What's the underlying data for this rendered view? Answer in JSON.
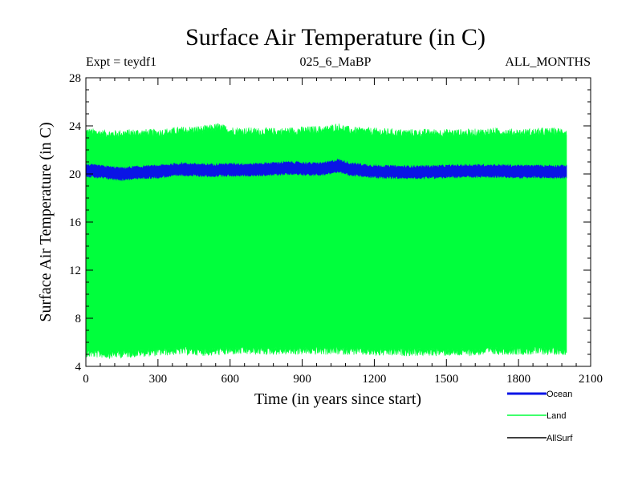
{
  "chart_data": {
    "type": "area",
    "title": "Surface Air Temperature (in C)",
    "subtitle_left": "Expt = teydf1",
    "subtitle_center": "025_6_MaBP",
    "subtitle_right": "ALL_MONTHS",
    "xlabel": "Time (in years since start)",
    "ylabel": "Surface Air Temperature (in C)",
    "xlim": [
      0,
      2100
    ],
    "ylim": [
      4,
      28
    ],
    "x_ticks": [
      0,
      300,
      600,
      900,
      1200,
      1500,
      1800,
      2100
    ],
    "x_tick_labels": [
      "0",
      "300",
      "600",
      "900",
      "1200",
      "1500",
      "1800",
      "2100"
    ],
    "y_ticks": [
      4,
      8,
      12,
      16,
      20,
      24,
      28
    ],
    "y_tick_labels": [
      "4",
      "8",
      "12",
      "16",
      "20",
      "24",
      "28"
    ],
    "x_minor_step": 60,
    "y_minor_step": 1,
    "series": [
      {
        "name": "Land",
        "color": "#00ff3c",
        "x_start": 0,
        "x_end": 2000,
        "band_upper": [
          {
            "x": 0,
            "y": 23.5
          },
          {
            "x": 100,
            "y": 23.3
          },
          {
            "x": 200,
            "y": 23.4
          },
          {
            "x": 300,
            "y": 23.4
          },
          {
            "x": 400,
            "y": 23.6
          },
          {
            "x": 500,
            "y": 23.7
          },
          {
            "x": 550,
            "y": 23.9
          },
          {
            "x": 600,
            "y": 23.6
          },
          {
            "x": 700,
            "y": 23.5
          },
          {
            "x": 800,
            "y": 23.5
          },
          {
            "x": 900,
            "y": 23.6
          },
          {
            "x": 1000,
            "y": 23.7
          },
          {
            "x": 1050,
            "y": 23.9
          },
          {
            "x": 1100,
            "y": 23.6
          },
          {
            "x": 1200,
            "y": 23.5
          },
          {
            "x": 1300,
            "y": 23.4
          },
          {
            "x": 1400,
            "y": 23.4
          },
          {
            "x": 1500,
            "y": 23.4
          },
          {
            "x": 1600,
            "y": 23.4
          },
          {
            "x": 1700,
            "y": 23.5
          },
          {
            "x": 1800,
            "y": 23.4
          },
          {
            "x": 1900,
            "y": 23.5
          },
          {
            "x": 2000,
            "y": 23.5
          }
        ],
        "band_lower": [
          {
            "x": 0,
            "y": 5.1
          },
          {
            "x": 100,
            "y": 5.0
          },
          {
            "x": 200,
            "y": 5.1
          },
          {
            "x": 300,
            "y": 5.2
          },
          {
            "x": 400,
            "y": 5.3
          },
          {
            "x": 500,
            "y": 5.2
          },
          {
            "x": 600,
            "y": 5.3
          },
          {
            "x": 700,
            "y": 5.3
          },
          {
            "x": 800,
            "y": 5.3
          },
          {
            "x": 900,
            "y": 5.3
          },
          {
            "x": 1000,
            "y": 5.3
          },
          {
            "x": 1100,
            "y": 5.3
          },
          {
            "x": 1200,
            "y": 5.2
          },
          {
            "x": 1300,
            "y": 5.2
          },
          {
            "x": 1400,
            "y": 5.2
          },
          {
            "x": 1500,
            "y": 5.2
          },
          {
            "x": 1600,
            "y": 5.2
          },
          {
            "x": 1700,
            "y": 5.3
          },
          {
            "x": 1800,
            "y": 5.3
          },
          {
            "x": 1900,
            "y": 5.3
          },
          {
            "x": 2000,
            "y": 5.3
          }
        ],
        "noise_amplitude": 0.35
      },
      {
        "name": "Ocean",
        "color": "#0a14e6",
        "x_start": 0,
        "x_end": 2000,
        "mean": [
          {
            "x": 0,
            "y": 20.3
          },
          {
            "x": 100,
            "y": 20.1
          },
          {
            "x": 150,
            "y": 20.0
          },
          {
            "x": 200,
            "y": 20.1
          },
          {
            "x": 300,
            "y": 20.2
          },
          {
            "x": 400,
            "y": 20.4
          },
          {
            "x": 500,
            "y": 20.3
          },
          {
            "x": 600,
            "y": 20.35
          },
          {
            "x": 700,
            "y": 20.35
          },
          {
            "x": 850,
            "y": 20.5
          },
          {
            "x": 950,
            "y": 20.4
          },
          {
            "x": 1000,
            "y": 20.45
          },
          {
            "x": 1050,
            "y": 20.7
          },
          {
            "x": 1100,
            "y": 20.4
          },
          {
            "x": 1200,
            "y": 20.2
          },
          {
            "x": 1300,
            "y": 20.15
          },
          {
            "x": 1400,
            "y": 20.15
          },
          {
            "x": 1500,
            "y": 20.2
          },
          {
            "x": 1600,
            "y": 20.25
          },
          {
            "x": 1700,
            "y": 20.25
          },
          {
            "x": 1800,
            "y": 20.2
          },
          {
            "x": 1900,
            "y": 20.2
          },
          {
            "x": 2000,
            "y": 20.2
          }
        ],
        "half_width": 0.45
      },
      {
        "name": "AllSurf",
        "color": "#000000"
      }
    ],
    "legend_position": "bottom-right"
  }
}
